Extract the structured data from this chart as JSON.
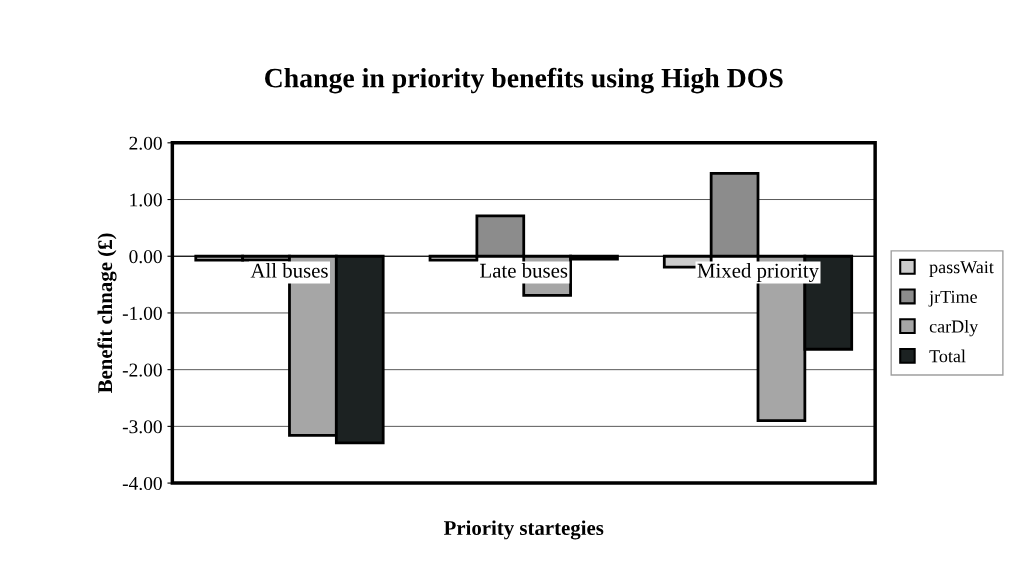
{
  "chart_data": {
    "type": "bar",
    "title": "Change in priority benefits using High DOS",
    "xlabel": "Priority startegies",
    "ylabel": "Benefit chnage (£)",
    "categories": [
      "All buses",
      "Late buses",
      "Mixed priority"
    ],
    "series": [
      {
        "name": "passWait",
        "color": "#cccccc",
        "values": [
          -0.07,
          -0.07,
          -0.19
        ]
      },
      {
        "name": "jrTime",
        "color": "#8c8c8c",
        "values": [
          -0.07,
          0.71,
          1.46
        ]
      },
      {
        "name": "carDly",
        "color": "#a6a6a6",
        "values": [
          -3.16,
          -0.69,
          -2.9
        ]
      },
      {
        "name": "Total",
        "color": "#1c2222",
        "values": [
          -3.29,
          -0.05,
          -1.64
        ]
      }
    ],
    "ylim": [
      -4,
      2
    ],
    "yticks": [
      {
        "value": -4,
        "label": "-4.00"
      },
      {
        "value": -3,
        "label": "-3.00"
      },
      {
        "value": -2,
        "label": "-2.00"
      },
      {
        "value": -1,
        "label": "-1.00"
      },
      {
        "value": 0,
        "label": "0.00"
      },
      {
        "value": 1,
        "label": "1.00"
      },
      {
        "value": 2,
        "label": "2.00"
      }
    ],
    "grid": "y",
    "legend": "right"
  }
}
